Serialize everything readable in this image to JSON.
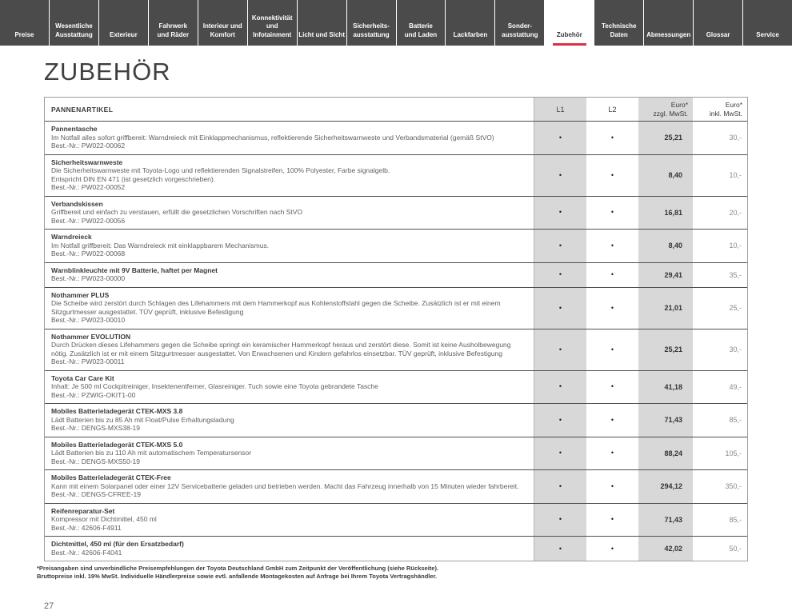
{
  "active_tab": "Zubehör",
  "tabs": [
    {
      "label": "Preise"
    },
    {
      "label": "Wesentliche\nAusstattung"
    },
    {
      "label": "Exterieur"
    },
    {
      "label": "Fahrwerk\nund Räder"
    },
    {
      "label": "Interieur und\nKomfort"
    },
    {
      "label": "Konnektivität\nund\nInfotainment"
    },
    {
      "label": "Licht und Sicht"
    },
    {
      "label": "Sicherheits-\nausstattung"
    },
    {
      "label": "Batterie\nund Laden"
    },
    {
      "label": "Lackfarben"
    },
    {
      "label": "Sonder-\nausstattung"
    },
    {
      "label": "Zubehör"
    },
    {
      "label": "Technische\nDaten"
    },
    {
      "label": "Abmessungen"
    },
    {
      "label": "Glossar"
    },
    {
      "label": "Service"
    }
  ],
  "page": {
    "title": "ZUBEHÖR",
    "number": "27"
  },
  "table": {
    "section_header": "PANNENARTIKEL",
    "columns": {
      "l1": "L1",
      "l2": "L2",
      "price_net": "Euro*\nzzgl. MwSt.",
      "price_gross": "Euro*\ninkl. MwSt."
    },
    "rows": [
      {
        "title": "Pannentasche",
        "description": [
          "Im Notfall alles sofort griffbereit: Warndreieck mit Einklappmechanismus, reflektierende Sicherheitswarnweste und Verbandsmaterial (gemäß StVO)"
        ],
        "order_no": "Best.-Nr.: PW022-00062",
        "l1": "•",
        "l2": "•",
        "net": "25,21",
        "gross": "30,-"
      },
      {
        "title": "Sicherheitswarnweste",
        "description": [
          "Die Sicherheitswarnweste mit Toyota-Logo und reflektierenden Signalstreifen, 100% Polyester, Farbe signalgelb.",
          "Entspricht DIN EN 471 (ist gesetzlich vorgeschrieben)."
        ],
        "order_no": "Best.-Nr.: PW022-00052",
        "l1": "•",
        "l2": "•",
        "net": "8,40",
        "gross": "10,-"
      },
      {
        "title": "Verbandskissen",
        "description": [
          "Griffbereit und einfach zu verstauen, erfüllt die gesetzlichen Vorschriften nach StVO"
        ],
        "order_no": "Best.-Nr.: PW022-00056",
        "l1": "•",
        "l2": "•",
        "net": "16,81",
        "gross": "20,-"
      },
      {
        "title": "Warndreieck",
        "description": [
          "Im Notfall griffbereit: Das Warndreieck mit einklappbarem Mechanismus."
        ],
        "order_no": "Best.-Nr.: PW022-00068",
        "l1": "•",
        "l2": "•",
        "net": "8,40",
        "gross": "10,-"
      },
      {
        "title": "Warnblinkleuchte mit 9V Batterie, haftet per Magnet",
        "description": [],
        "order_no": "Best.-Nr.: PW023-00000",
        "l1": "•",
        "l2": "•",
        "net": "29,41",
        "gross": "35,-"
      },
      {
        "title": "Nothammer PLUS",
        "description": [
          "Die Scheibe wird zerstört durch Schlagen des Lifehammers mit dem Hammerkopf aus Kohlenstoffstahl gegen die Scheibe. Zusätzlich ist er mit einem Sitzgurtmesser ausgestattet. TÜV geprüft, inklusive Befestigung"
        ],
        "order_no": "Best.-Nr.: PW023-00010",
        "l1": "•",
        "l2": "•",
        "net": "21,01",
        "gross": "25,-"
      },
      {
        "title": "Nothammer EVOLUTION",
        "description": [
          "Durch Drücken dieses Lifehammers gegen die Scheibe springt ein keramischer Hammerkopf heraus und zerstört diese. Somit ist keine Ausholbewegung nötig. Zusätzlich ist er mit einem Sitzgurtmesser ausgestattet. Von Erwachsenen und Kindern gefahrlos einsetzbar. TÜV geprüft, inklusive Befestigung"
        ],
        "order_no": "Best.-Nr.: PW023-00011",
        "l1": "•",
        "l2": "•",
        "net": "25,21",
        "gross": "30,-"
      },
      {
        "title": "Toyota Car Care Kit",
        "description": [
          "Inhalt: Je 500 ml Cockpitreiniger, Insektenentferner, Glasreiniger. Tuch sowie eine Toyota gebrandete Tasche"
        ],
        "order_no": "Best.-Nr.: PZWIG-OKIT1-00",
        "l1": "•",
        "l2": "•",
        "net": "41,18",
        "gross": "49,-"
      },
      {
        "title": "Mobiles Batterieladegerät CTEK-MXS 3.8",
        "description": [
          "Lädt Batterien bis zu 85 Ah mit Float/Pulse Erhaltungsladung"
        ],
        "order_no": "Best.-Nr.: DENGS-MXS38-19",
        "l1": "•",
        "l2": "•",
        "net": "71,43",
        "gross": "85,-"
      },
      {
        "title": "Mobiles Batterieladegerät CTEK-MXS 5.0",
        "description": [
          "Lädt Batterien bis zu 110 Ah mit automatischem Temperatursensor"
        ],
        "order_no": "Best.-Nr.: DENGS-MXS50-19",
        "l1": "•",
        "l2": "•",
        "net": "88,24",
        "gross": "105,-"
      },
      {
        "title": "Mobiles Batterieladegerät CTEK-Free",
        "description": [
          "Kann mit einem Solarpanel oder einer 12V Servicebatterie geladen und betrieben werden. Macht das Fahrzeug innerhalb von 15 Minuten wieder fahrbereit."
        ],
        "order_no": "Best.-Nr.: DENGS-CFREE-19",
        "l1": "•",
        "l2": "•",
        "net": "294,12",
        "gross": "350,-"
      },
      {
        "title": "Reifenreparatur-Set",
        "description": [
          "Kompressor mit Dichtmittel, 450 ml"
        ],
        "order_no": "Best.-Nr.: 42606-F4911",
        "l1": "•",
        "l2": "•",
        "net": "71,43",
        "gross": "85,-"
      },
      {
        "title": "Dichtmittel, 450 ml (für den Ersatzbedarf)",
        "description": [],
        "order_no": "Best.-Nr.: 42606-F4041",
        "l1": "•",
        "l2": "•",
        "net": "42,02",
        "gross": "50,-"
      }
    ]
  },
  "footnote": {
    "line1": "*Preisangaben sind unverbindliche Preisempfehlungen der Toyota Deutschland GmbH zum Zeitpunkt der Veröffentlichung (siehe Rückseite).",
    "line2": "Bruttopreise inkl. 19% MwSt. Individuelle Händlerpreise sowie evtl. anfallende Montagekosten auf Anfrage bei Ihrem Toyota Vertragshändler."
  },
  "colors": {
    "accent_red": "#d73246",
    "tab_bar_bg": "#4b4b4b",
    "shaded_column": "#d8d8d8"
  }
}
